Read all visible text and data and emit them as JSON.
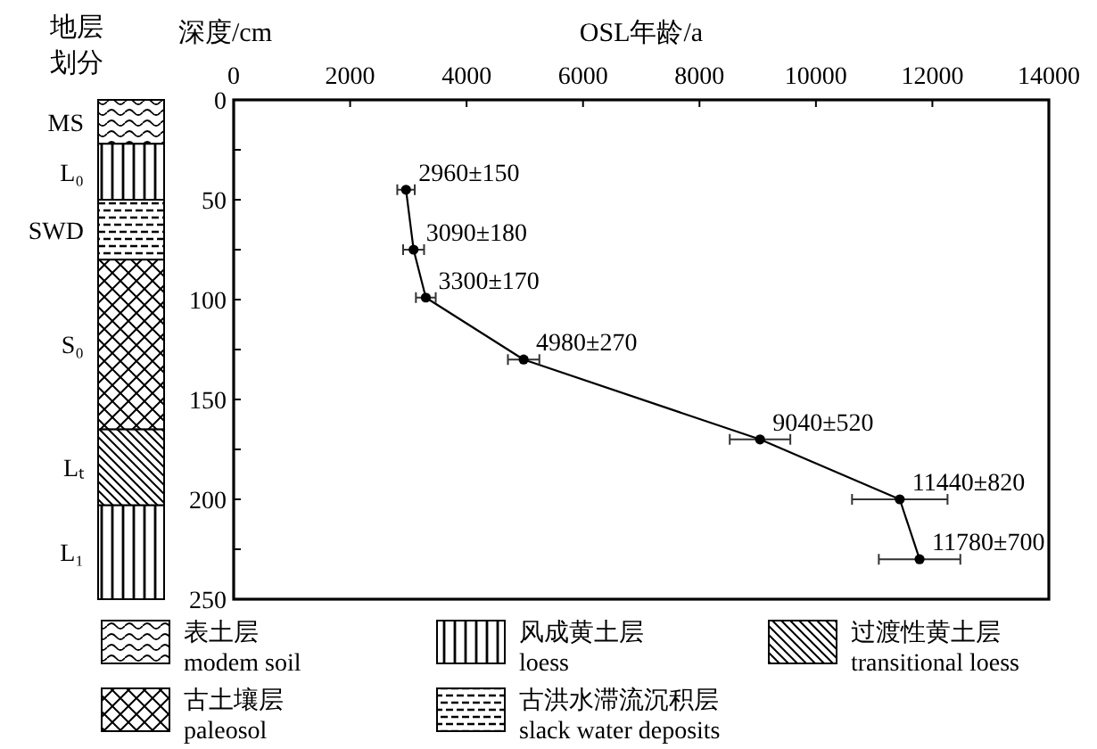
{
  "chart_data": [
    {
      "type": "bar",
      "stacked": true,
      "title": "地层划分",
      "categories": [
        null
      ],
      "ylim": [
        250,
        0
      ],
      "series": [
        {
          "name": "MS",
          "color": "#000000",
          "values": [
            22
          ]
        },
        {
          "name": "L₀",
          "color": "#000000",
          "values": [
            28
          ]
        },
        {
          "name": "SWD",
          "color": "#000000",
          "values": [
            30
          ]
        },
        {
          "name": "S₀",
          "color": "#000000",
          "values": [
            85
          ]
        },
        {
          "name": "Lₜ",
          "color": "#000000",
          "values": [
            38
          ]
        },
        {
          "name": "L₁",
          "color": "#000000",
          "values": [
            47
          ]
        }
      ],
      "annotations": [
        "表土层\nmodem soil",
        "风成黄土层\nloess",
        "过渡性黄土层\ntransitional loess",
        "古土壤层\npaleosol",
        "古洪水滞流沉积层\nslack water deposits"
      ]
    },
    {
      "type": "line",
      "xlabel": "OSL年龄/a",
      "ylabel": "深度/cm",
      "xlim": [
        0,
        14000
      ],
      "xticks": [
        0,
        2000,
        4000,
        6000,
        8000,
        10000,
        12000,
        14000
      ],
      "ylim": [
        250,
        0
      ],
      "yticks": [
        0,
        {
          "value": 25,
          "label": null
        },
        50,
        {
          "value": 75,
          "label": null
        },
        100,
        {
          "value": 125,
          "label": null
        },
        150,
        {
          "value": 175,
          "label": null
        },
        200,
        {
          "value": 225,
          "label": null
        },
        250
      ],
      "marker": "circle",
      "x": [
        2960,
        3090,
        3300,
        4980,
        9040,
        11440,
        11780
      ],
      "series": [
        {
          "color": "#000000",
          "values": [
            45,
            75,
            99,
            130,
            170,
            200,
            230
          ],
          "xerrors": [
            150,
            180,
            170,
            270,
            520,
            820,
            700
          ]
        }
      ],
      "annotations": [
        {
          "text": "2960±150",
          "x": 2960,
          "y": 45
        },
        {
          "text": "3090±180",
          "x": 3090,
          "y": 75
        },
        {
          "text": "3300±170",
          "x": 3300,
          "y": 99
        },
        {
          "text": "4980±270",
          "x": 4980,
          "y": 130
        },
        {
          "text": "9040±520",
          "x": 9040,
          "y": 170
        },
        {
          "text": "11440±820",
          "x": 11440,
          "y": 200
        },
        {
          "text": "11780±700",
          "x": 11780,
          "y": 230
        }
      ]
    }
  ]
}
